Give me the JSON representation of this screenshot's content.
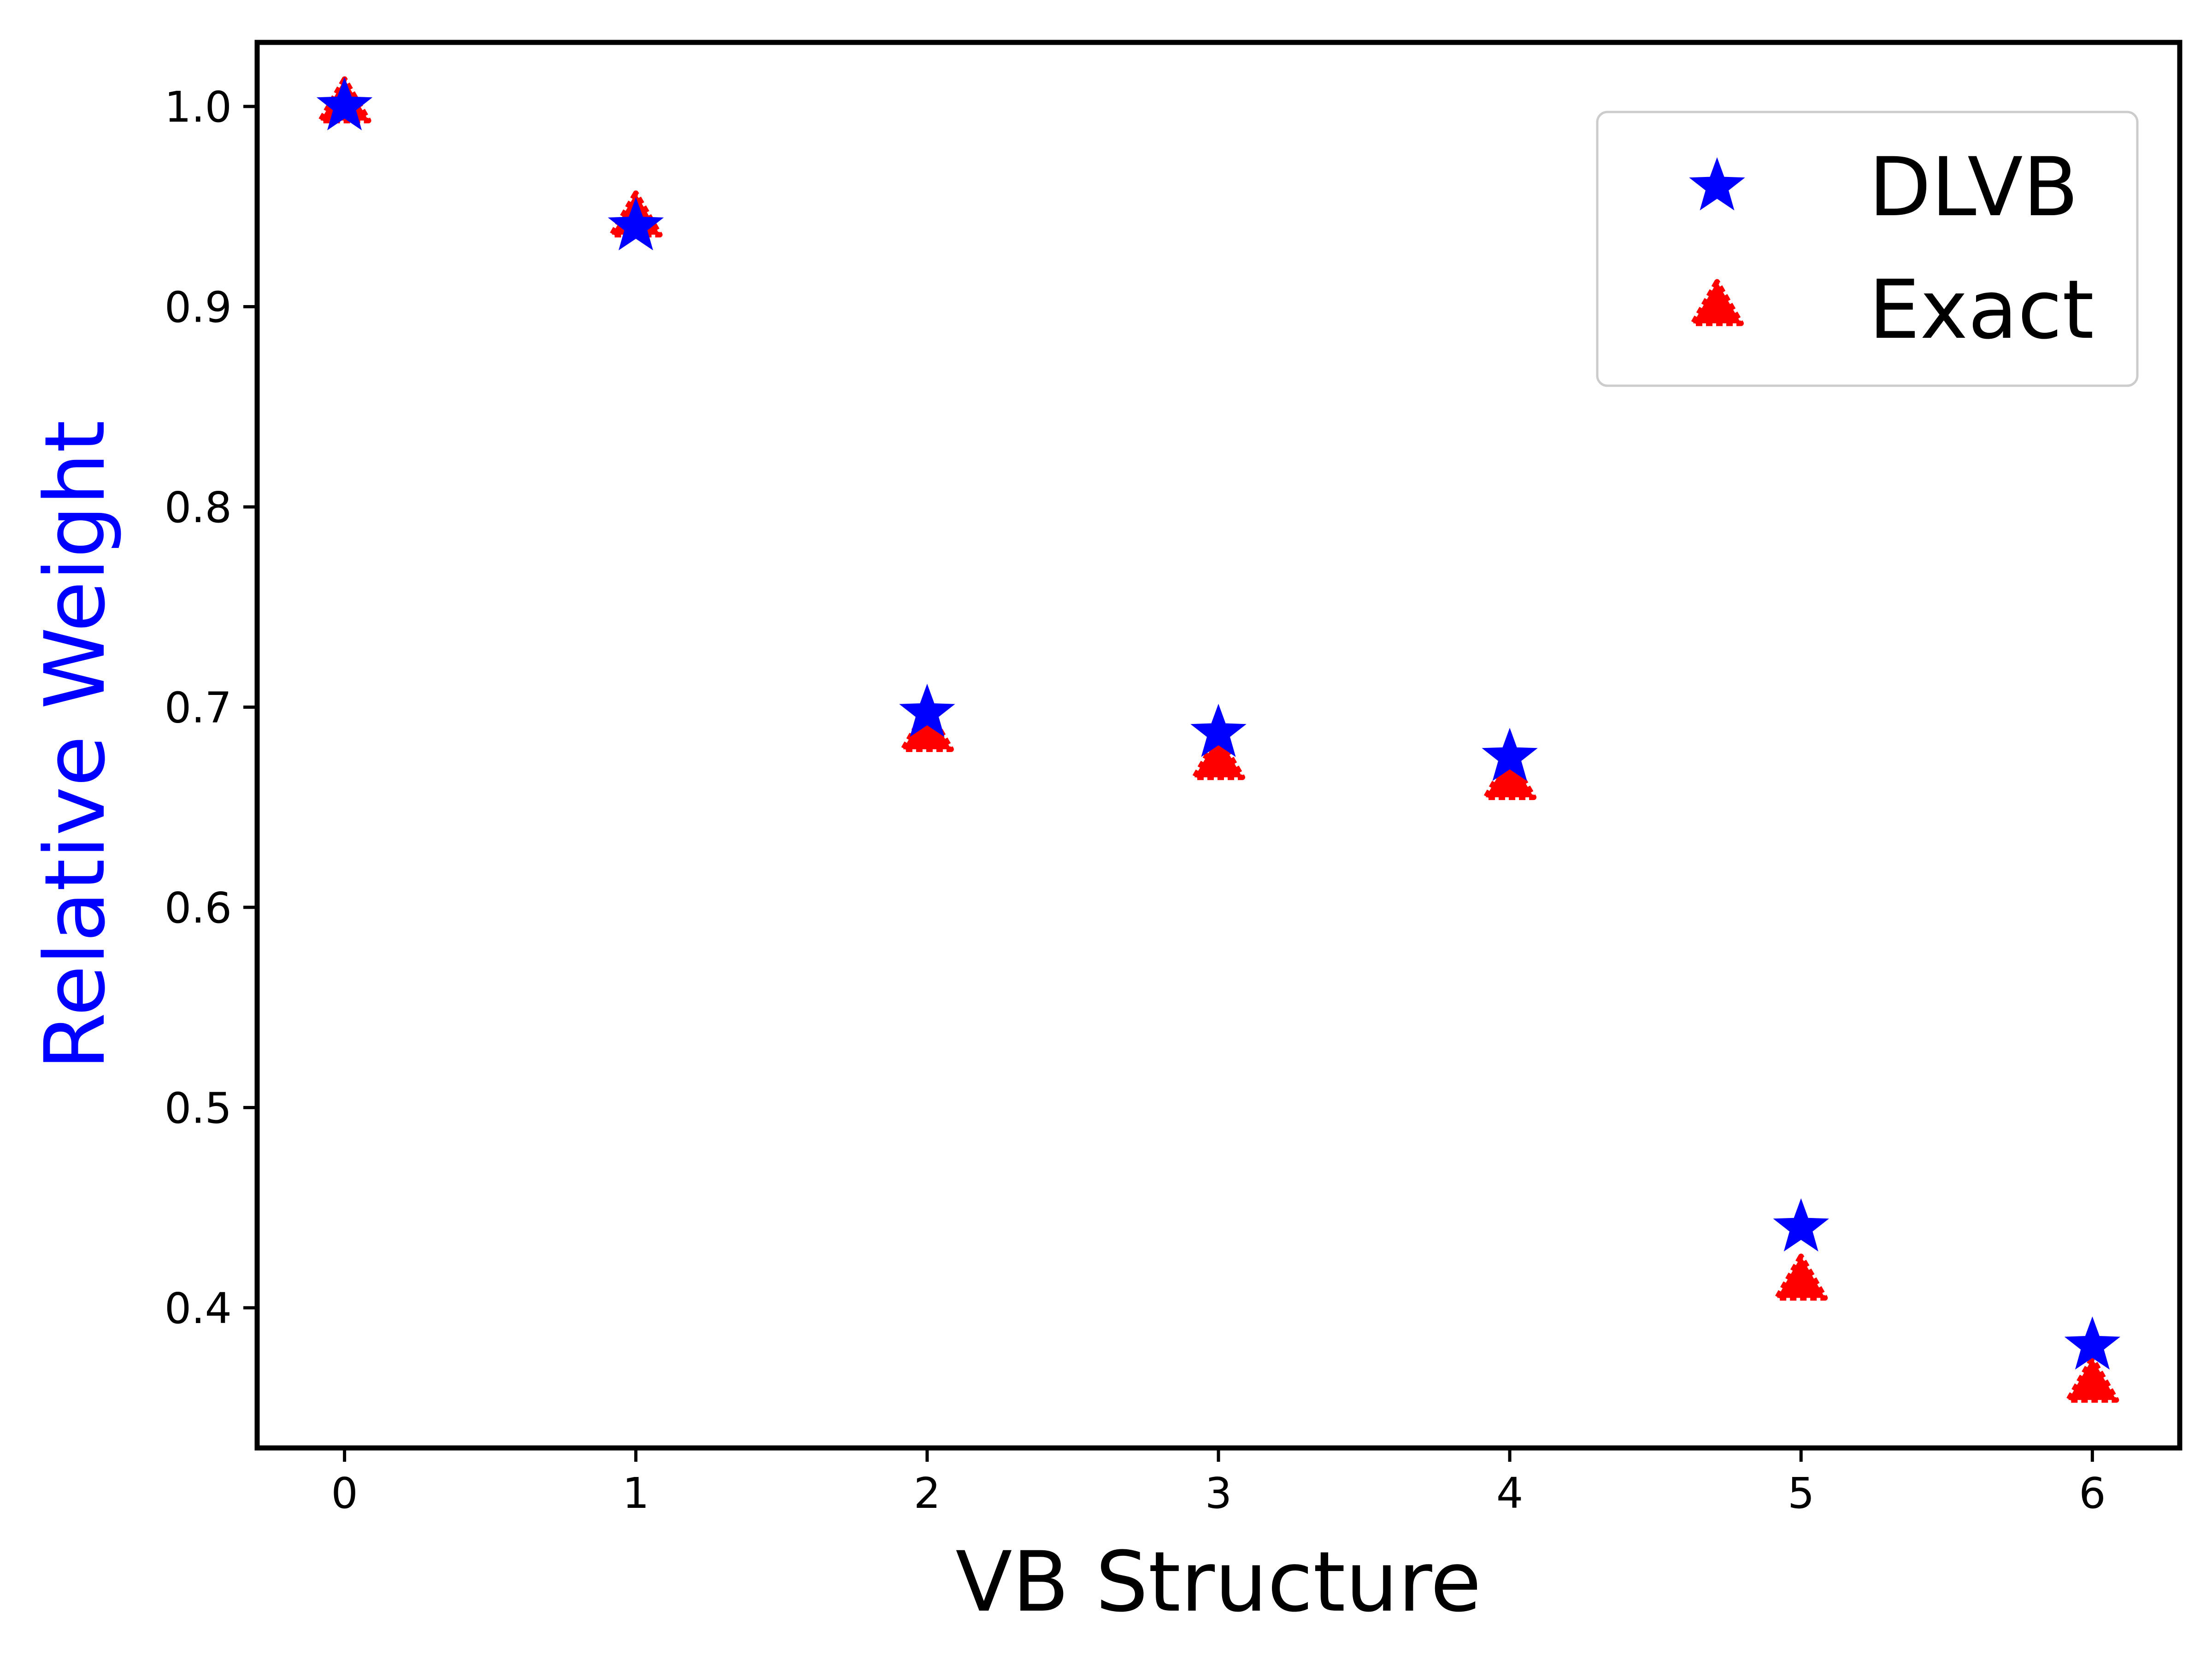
{
  "chart_data": {
    "type": "scatter",
    "title": "",
    "xlabel": "VB Structure",
    "ylabel": "Relative Weight",
    "xlim": [
      -0.3,
      6.3
    ],
    "ylim": [
      0.33,
      1.032
    ],
    "xticks": [
      0,
      1,
      2,
      3,
      4,
      5,
      6
    ],
    "xtick_labels": [
      "0",
      "1",
      "2",
      "3",
      "4",
      "5",
      "6"
    ],
    "yticks": [
      0.4,
      0.5,
      0.6,
      0.7,
      0.8,
      0.9,
      1.0
    ],
    "ytick_labels": [
      "0.4",
      "0.5",
      "0.6",
      "0.7",
      "0.8",
      "0.9",
      "1.0"
    ],
    "grid": false,
    "legend_position": "top-right",
    "series": [
      {
        "name": "DLVB",
        "marker": "star",
        "color": "#0000ff",
        "x": [
          0,
          1,
          2,
          3,
          4,
          5,
          6
        ],
        "y": [
          1.0,
          0.94,
          0.697,
          0.687,
          0.675,
          0.44,
          0.381
        ]
      },
      {
        "name": "Exact",
        "marker": "triangle",
        "color": "#ff0000",
        "x": [
          0,
          1,
          2,
          3,
          4,
          5,
          6
        ],
        "y": [
          1.0,
          0.943,
          0.686,
          0.672,
          0.662,
          0.412,
          0.361
        ]
      }
    ],
    "ylabel_color": "#0000ff",
    "xlabel_color": "#000000"
  }
}
